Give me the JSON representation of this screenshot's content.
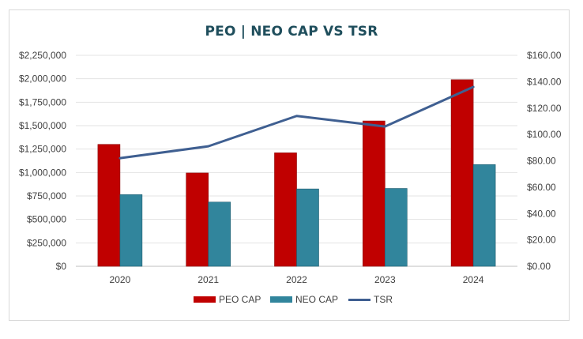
{
  "chart_data": {
    "type": "bar",
    "title": "PEO | NEO CAP VS TSR",
    "categories": [
      "2020",
      "2021",
      "2022",
      "2023",
      "2024"
    ],
    "series": [
      {
        "name": "PEO CAP",
        "type": "bar",
        "axis": "left",
        "color": "#c00000",
        "values": [
          1300000,
          995000,
          1210000,
          1550000,
          1990000
        ]
      },
      {
        "name": "NEO CAP",
        "type": "bar",
        "axis": "left",
        "color": "#31859c",
        "values": [
          765000,
          685000,
          825000,
          830000,
          1085000
        ]
      },
      {
        "name": "TSR",
        "type": "line",
        "axis": "right",
        "color": "#3f5f91",
        "values": [
          82,
          91,
          114,
          106,
          136
        ]
      }
    ],
    "y_left": {
      "min": 0,
      "max": 2250000,
      "step": 250000,
      "tick_labels": [
        "$0",
        "$250,000",
        "$500,000",
        "$750,000",
        "$1,000,000",
        "$1,250,000",
        "$1,500,000",
        "$1,750,000",
        "$2,000,000",
        "$2,250,000"
      ]
    },
    "y_right": {
      "min": 0,
      "max": 160,
      "step": 20,
      "tick_labels": [
        "$0.00",
        "$20.00",
        "$40.00",
        "$60.00",
        "$80.00",
        "$100.00",
        "$120.00",
        "$140.00",
        "$160.00"
      ]
    },
    "grid": true,
    "legend_position": "bottom"
  },
  "legend": {
    "peo_label": "PEO CAP",
    "neo_label": "NEO CAP",
    "tsr_label": "TSR"
  }
}
